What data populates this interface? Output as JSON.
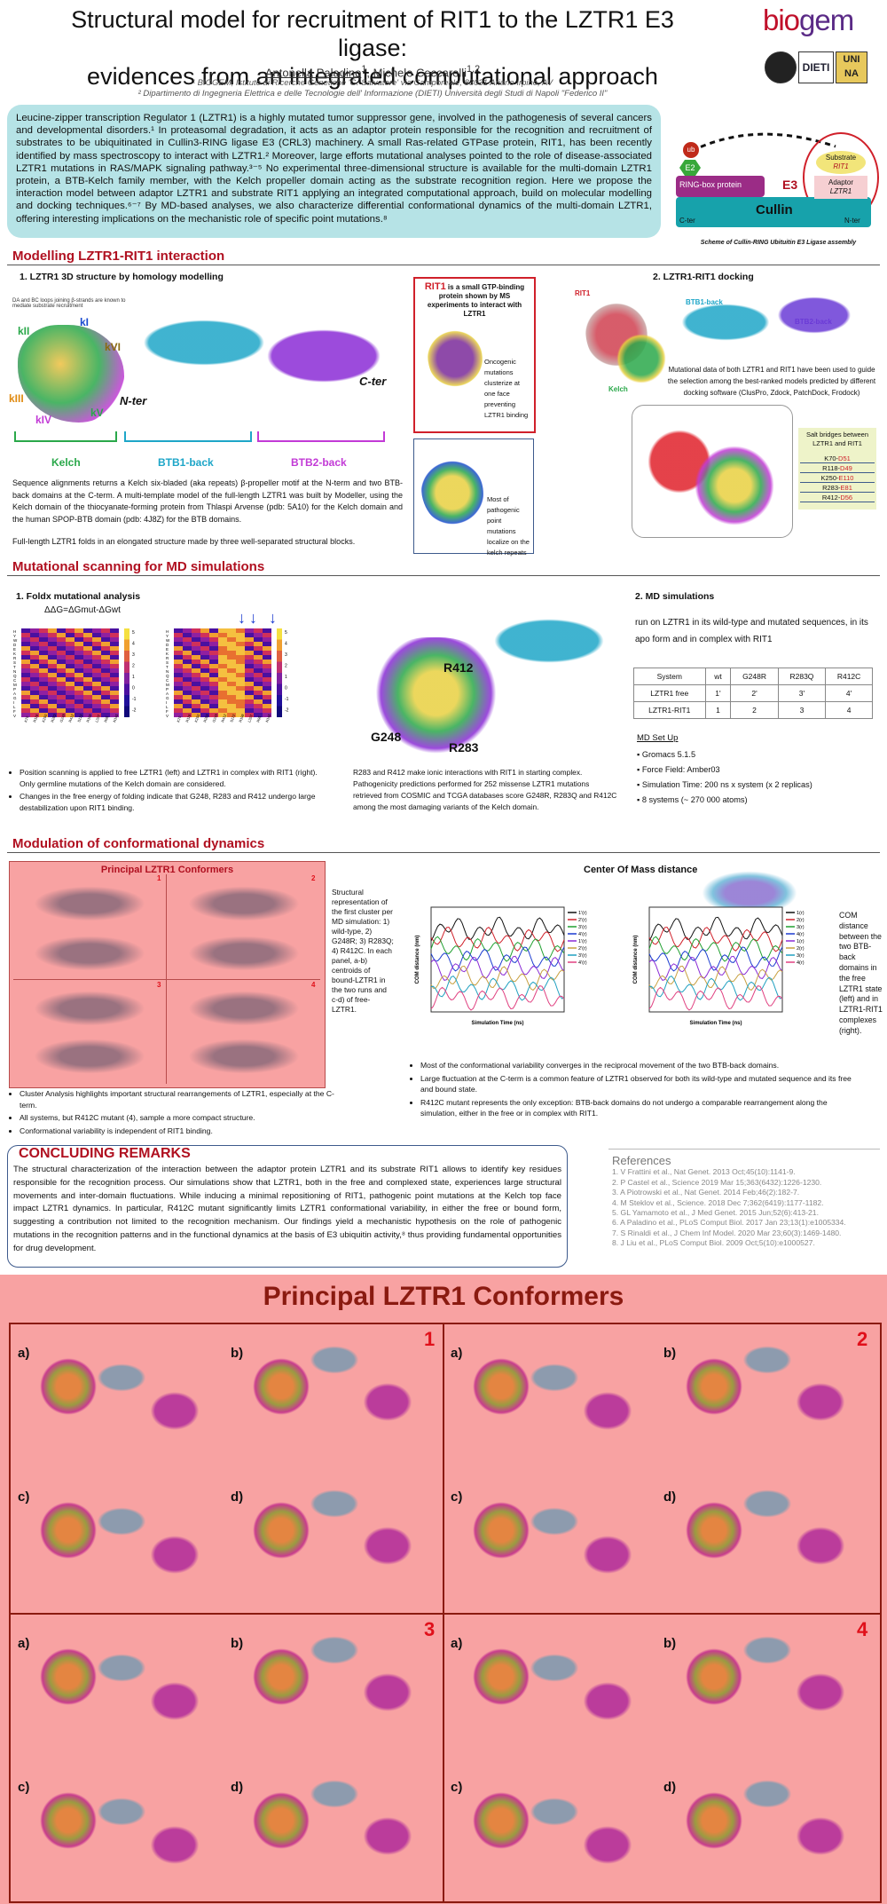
{
  "header": {
    "title_line1": "Structural model for recruitment of RIT1 to the LZTR1 E3 ligase:",
    "title_line2": "evidences from an integrated computational approach",
    "author1": "Antonella Paladino",
    "author1_sup": "1",
    "author2": ", Michele Ceccarelli",
    "author2_sup": "1,2",
    "aff1": "¹ BIOGEM, Istituto di Ricerche Genetiche 'G. Salvatore' via Camporeale, 83031 Ariano Irpino, AV",
    "aff2": "² Dipartimento di Ingegneria Elettrica e delle Tecnologie dell' Informazione (DIETI) Università degli Studi di Napoli \"Federico II\"",
    "logo_text_a": "bio",
    "logo_text_b": "gem",
    "logo_dieti": "DIETI",
    "logo_unina": "UNI NA"
  },
  "intro": {
    "text": "Leucine-zipper transcription Regulator 1 (LZTR1) is a highly mutated tumor suppressor gene, involved in the pathogenesis of several cancers and developmental disorders.¹ In proteasomal degradation, it acts as an adaptor protein responsible for the recognition and recruitment of substrates to be ubiquitinated in Cullin3-RING ligase E3 (CRL3) machinery. A small Ras-related GTPase protein, RIT1, has been recently identified by mass spectroscopy to interact with LZTR1.² Moreover, large efforts mutational analyses pointed to the role of disease-associated LZTR1 mutations in RAS/MAPK signaling pathway.³⁻⁵ No experimental three-dimensional structure is available for the multi-domain LZTR1 protein, a BTB-Kelch family member, with the Kelch propeller domain acting as the substrate recognition region. Here we propose the interaction model between adaptor LZTR1 and substrate RIT1 applying an integrated computational approach, build on molecular modelling and docking techniques.⁶⁻⁷ By MD-based analyses, we also characterize differential conformational dynamics of the multi-domain LZTR1, offering interesting implications on the mechanistic role of specific point mutations.⁸"
  },
  "scheme": {
    "ub": "ub",
    "e2": "E2",
    "ring": "RING-box protein",
    "e3": "E3",
    "substrate": "Substrate",
    "rit1": "RIT1",
    "adaptor": "Adaptor",
    "lztr1": "LZTR1",
    "cullin": "Cullin",
    "cter": "C-ter",
    "nter": "N-ter",
    "caption": "Scheme of Cullin-RING Ubituitin E3 Ligase assembly"
  },
  "section1": {
    "heading": "Modelling LZTR1-RIT1 interaction",
    "sub1": "1.  LZTR1 3D structure by homology modelling",
    "loops_note": "DA and BC loops joining β-strands are known to mediate substrate recruitment",
    "blade_labels": [
      "kI",
      "kII",
      "kIII",
      "kIV",
      "kV",
      "kVI"
    ],
    "nter": "N-ter",
    "cter": "C-ter",
    "domains": [
      "Kelch",
      "BTB1-back",
      "BTB2-back"
    ],
    "para": "Sequence alignments returns a Kelch six-bladed (aka repeats) β-propeller motif at the N-term and two BTB-back domains at the C-term. A multi-template model of the full-length LZTR1 was built by Modeller, using the Kelch domain of the thiocyanate-forming protein from Thlaspi Arvense (pdb: 5A10) for the Kelch domain and the human SPOP-BTB domain  (pdb: 4J8Z) for the BTB domains.",
    "para2": "Full-length LZTR1 folds in an elongated structure made by three well-separated structural blocks.",
    "rit1_box_title": "RIT1",
    "rit1_box_text": "is a small GTP-binding protein  shown by MS experiments to interact with LZTR1",
    "rit1_box_note": "Oncogenic mutations clusterize at one face preventing LZTR1 binding",
    "path_note": "Most of pathogenic point mutations localize on the kelch repeats",
    "sub2": "2.  LZTR1-RIT1 docking",
    "dock_rit1": "RIT1",
    "dock_kelch": "Kelch",
    "dock_btb1": "BTB1-back",
    "dock_btb2": "BTB2-back",
    "dock_para": "Mutational data of both LZTR1 and RIT1 have been used to guide the selection among the best-ranked models predicted by different docking software (ClusPro, Zdock, PatchDock, Frodock)",
    "salt_title": "Salt bridges between LZTR1 and RIT1",
    "salt_bridges": [
      {
        "a": "K70-",
        "b": "D51"
      },
      {
        "a": "R118-",
        "b": "D49"
      },
      {
        "a": "K250-",
        "b": "E110"
      },
      {
        "a": "R283-",
        "b": "E81"
      },
      {
        "a": "R412-",
        "b": "D56"
      }
    ]
  },
  "section2": {
    "heading": "Mutational scanning for MD simulations",
    "sub1": "1.  Foldx mutational analysis",
    "formula": "ΔΔG=ΔGmut-ΔGwt",
    "row_letters": [
      "H",
      "Y",
      "W",
      "D",
      "E",
      "K",
      "R",
      "S",
      "T",
      "N",
      "Q",
      "C",
      "M",
      "P",
      "A",
      "G",
      "I",
      "L",
      "F",
      "V"
    ],
    "col_labels": [
      "K70",
      "R118",
      "K250",
      "R283",
      "G248",
      "R412",
      "S122",
      "R198",
      "L337",
      "R95",
      "N145"
    ],
    "scale": [
      "5",
      "4",
      "3",
      "2",
      "1",
      "0",
      "-1",
      "-2"
    ],
    "bullets": [
      "Position scanning is applied to free LZTR1 (left) and LZTR1 in complex with RIT1 (right). Only germline mutations of the Kelch domain are considered.",
      "Changes in the free energy of folding indicate that G248, R283 and R412 undergo large destabilization upon RIT1 binding."
    ],
    "mut_labels": [
      "R412",
      "G248",
      "R283"
    ],
    "mid_para": "R283 and R412 make ionic interactions with RIT1 in starting complex. Pathogenicity predictions performed for 252 missense LZTR1 mutations retrieved from COSMIC and TCGA databases score G248R, R283Q and R412C among the most damaging variants of the Kelch domain.",
    "sub2": "2.  MD simulations",
    "md_para": "run on LZTR1 in its wild-type and mutated sequences, in its apo form and in complex with RIT1",
    "table_head": [
      "System",
      "wt",
      "G248R",
      "R283Q",
      "R412C"
    ],
    "table_rows": [
      [
        "LZTR1 free",
        "1'",
        "2'",
        "3'",
        "4'"
      ],
      [
        "LZTR1-RIT1",
        "1",
        "2",
        "3",
        "4"
      ]
    ],
    "setup_title": "MD Set Up",
    "setup": [
      "Gromacs 5.1.5",
      "Force Field: Amber03",
      "Simulation Time: 200 ns x system  (x 2 replicas)",
      "8 systems (~ 270 000 atoms)"
    ]
  },
  "section3": {
    "heading": "Modulation of conformational dynamics",
    "conformers_title": "Principal LZTR1 Conformers",
    "side_text": "Structural representation of the first cluster per MD simulation: 1) wild-type, 2) G248R; 3) R283Q; 4) R412C. In each panel, a-b) centroids of bound-LZTR1 in the two runs and c-d) of free-LZTR1.",
    "com_title": "Center Of Mass distance",
    "com_text": "COM distance between the two BTB-back domains in the free LZTR1 state (left) and in LZTR1-RIT1 complexes (right).",
    "chart_left_legend": [
      "1'(r)",
      "2'(r)",
      "3'(r)",
      "4'(r)",
      "1'(r)",
      "2'(r)",
      "3'(r)",
      "4'(r)"
    ],
    "chart_right_legend": [
      "1(r)",
      "2(r)",
      "3(r)",
      "4(r)",
      "1(r)",
      "2(r)",
      "3(r)",
      "4(r)"
    ],
    "xlabel": "Simulation Time (ns)",
    "ylabel": "COM distance (nm)",
    "left_bullets": [
      "Cluster Analysis highlights important structural rearrangements of LZTR1, especially at the C-term.",
      "All systems, but R412C mutant (4), sample a more compact structure.",
      "Conformational variability is independent of RIT1 binding."
    ],
    "right_bullets": [
      "Most of the conformational variability converges in the reciprocal movement of the two BTB-back domains.",
      "Large fluctuation at the C-term is a common feature of LZTR1 observed for both its wild-type and mutated sequence and its free and bound state.",
      "R412C mutant represents the only exception: BTB-back domains do not undergo a comparable rearrangement along the simulation, either in the free or in complex with RIT1."
    ]
  },
  "conclusions": {
    "heading": "CONCLUDING REMARKS",
    "text": "The structural characterization of the interaction between the adaptor protein LZTR1 and its substrate RIT1 allows to identify key residues responsible for the recognition process. Our simulations show that LZTR1, both in the free and complexed state, experiences large structural movements and inter-domain fluctuations. While inducing a minimal repositioning of RIT1, pathogenic point mutations at the Kelch top face impact LZTR1 dynamics. In particular, R412C mutant significantly limits LZTR1 conformational variability, in either the free or bound form, suggesting a contribution not limited to the recognition mechanism. Our findings yield a mechanistic hypothesis on the role of pathogenic mutations in the recognition patterns and in the functional dynamics at the basis of E3 ubiquitin activity,⁸ thus providing fundamental opportunities for drug development."
  },
  "references": {
    "heading": "References",
    "items": [
      "1.  V Frattini et al., Nat Genet. 2013 Oct;45(10):1141-9.",
      "2.  P Castel et al., Science 2019 Mar 15;363(6432):1226-1230.",
      "3.  A Piotrowski et al., Nat Genet. 2014 Feb;46(2):182-7.",
      "4.  M Steklov et al., Science. 2018 Dec 7;362(6419):1177-1182.",
      "5.  GL Yamamoto et al., J Med Genet. 2015 Jun;52(6):413-21.",
      "6.  A Paladino et al., PLoS Comput Biol. 2017 Jan 23;13(1):e1005334.",
      "7.  S Rinaldi et al., J Chem Inf Model. 2020 Mar 23;60(3):1469-1480.",
      "8.  J Liu et al., PLoS Comput Biol. 2009 Oct;5(10):e1000527."
    ]
  },
  "big_panel": {
    "title": "Principal LZTR1 Conformers",
    "quadrants": [
      {
        "num": "1",
        "labels": [
          "a)",
          "b)",
          "c)",
          "d)"
        ]
      },
      {
        "num": "2",
        "labels": [
          "a)",
          "b)",
          "c)",
          "d)"
        ]
      },
      {
        "num": "3",
        "labels": [
          "a)",
          "b)",
          "c)",
          "d)"
        ]
      },
      {
        "num": "4",
        "labels": [
          "a)",
          "b)",
          "c)",
          "d)"
        ]
      }
    ]
  },
  "colors": {
    "accent_red": "#b01020",
    "intro_bg": "#b6e3e6",
    "panel_pink": "#f8a2a2",
    "kelch_green": "#2aa84a",
    "btb1_cyan": "#1ea6c8",
    "btb2_purple": "#c23ad6"
  }
}
